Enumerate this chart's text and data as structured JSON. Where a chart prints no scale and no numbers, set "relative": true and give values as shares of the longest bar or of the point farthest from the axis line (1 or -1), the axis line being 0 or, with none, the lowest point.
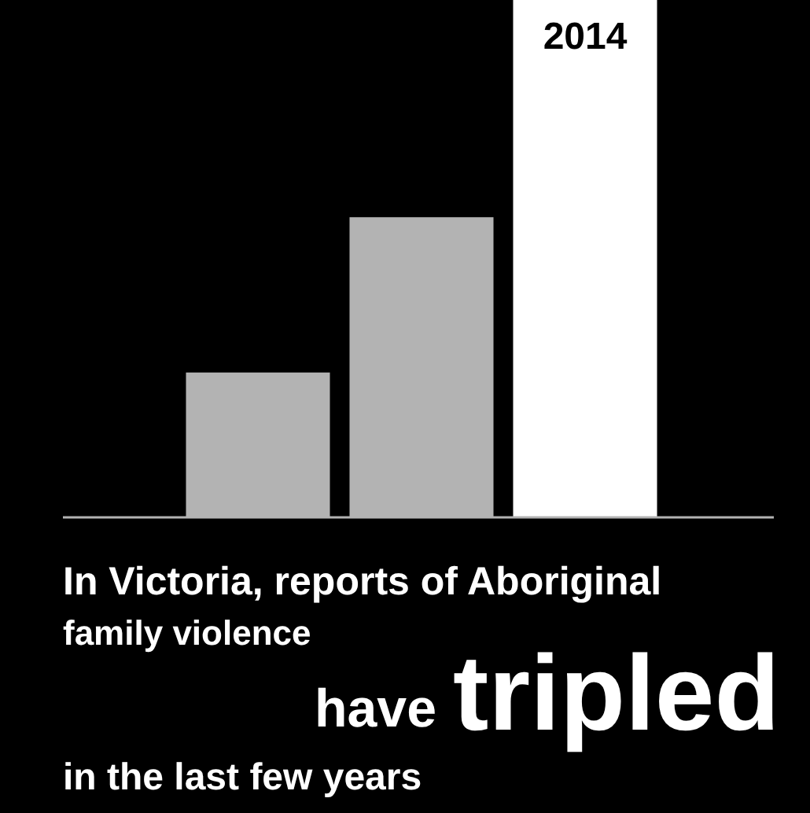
{
  "chart_data": {
    "type": "bar",
    "relative": true,
    "categories": [
      null,
      null,
      "2014"
    ],
    "values": [
      0.28,
      0.58,
      1
    ],
    "colors": [
      "#b3b3b3",
      "#b3b3b3",
      "#ffffff"
    ],
    "annotations": [
      "In Victoria, reports of Aboriginal",
      "family violence",
      "have",
      "tripled",
      "in the last few years"
    ]
  }
}
